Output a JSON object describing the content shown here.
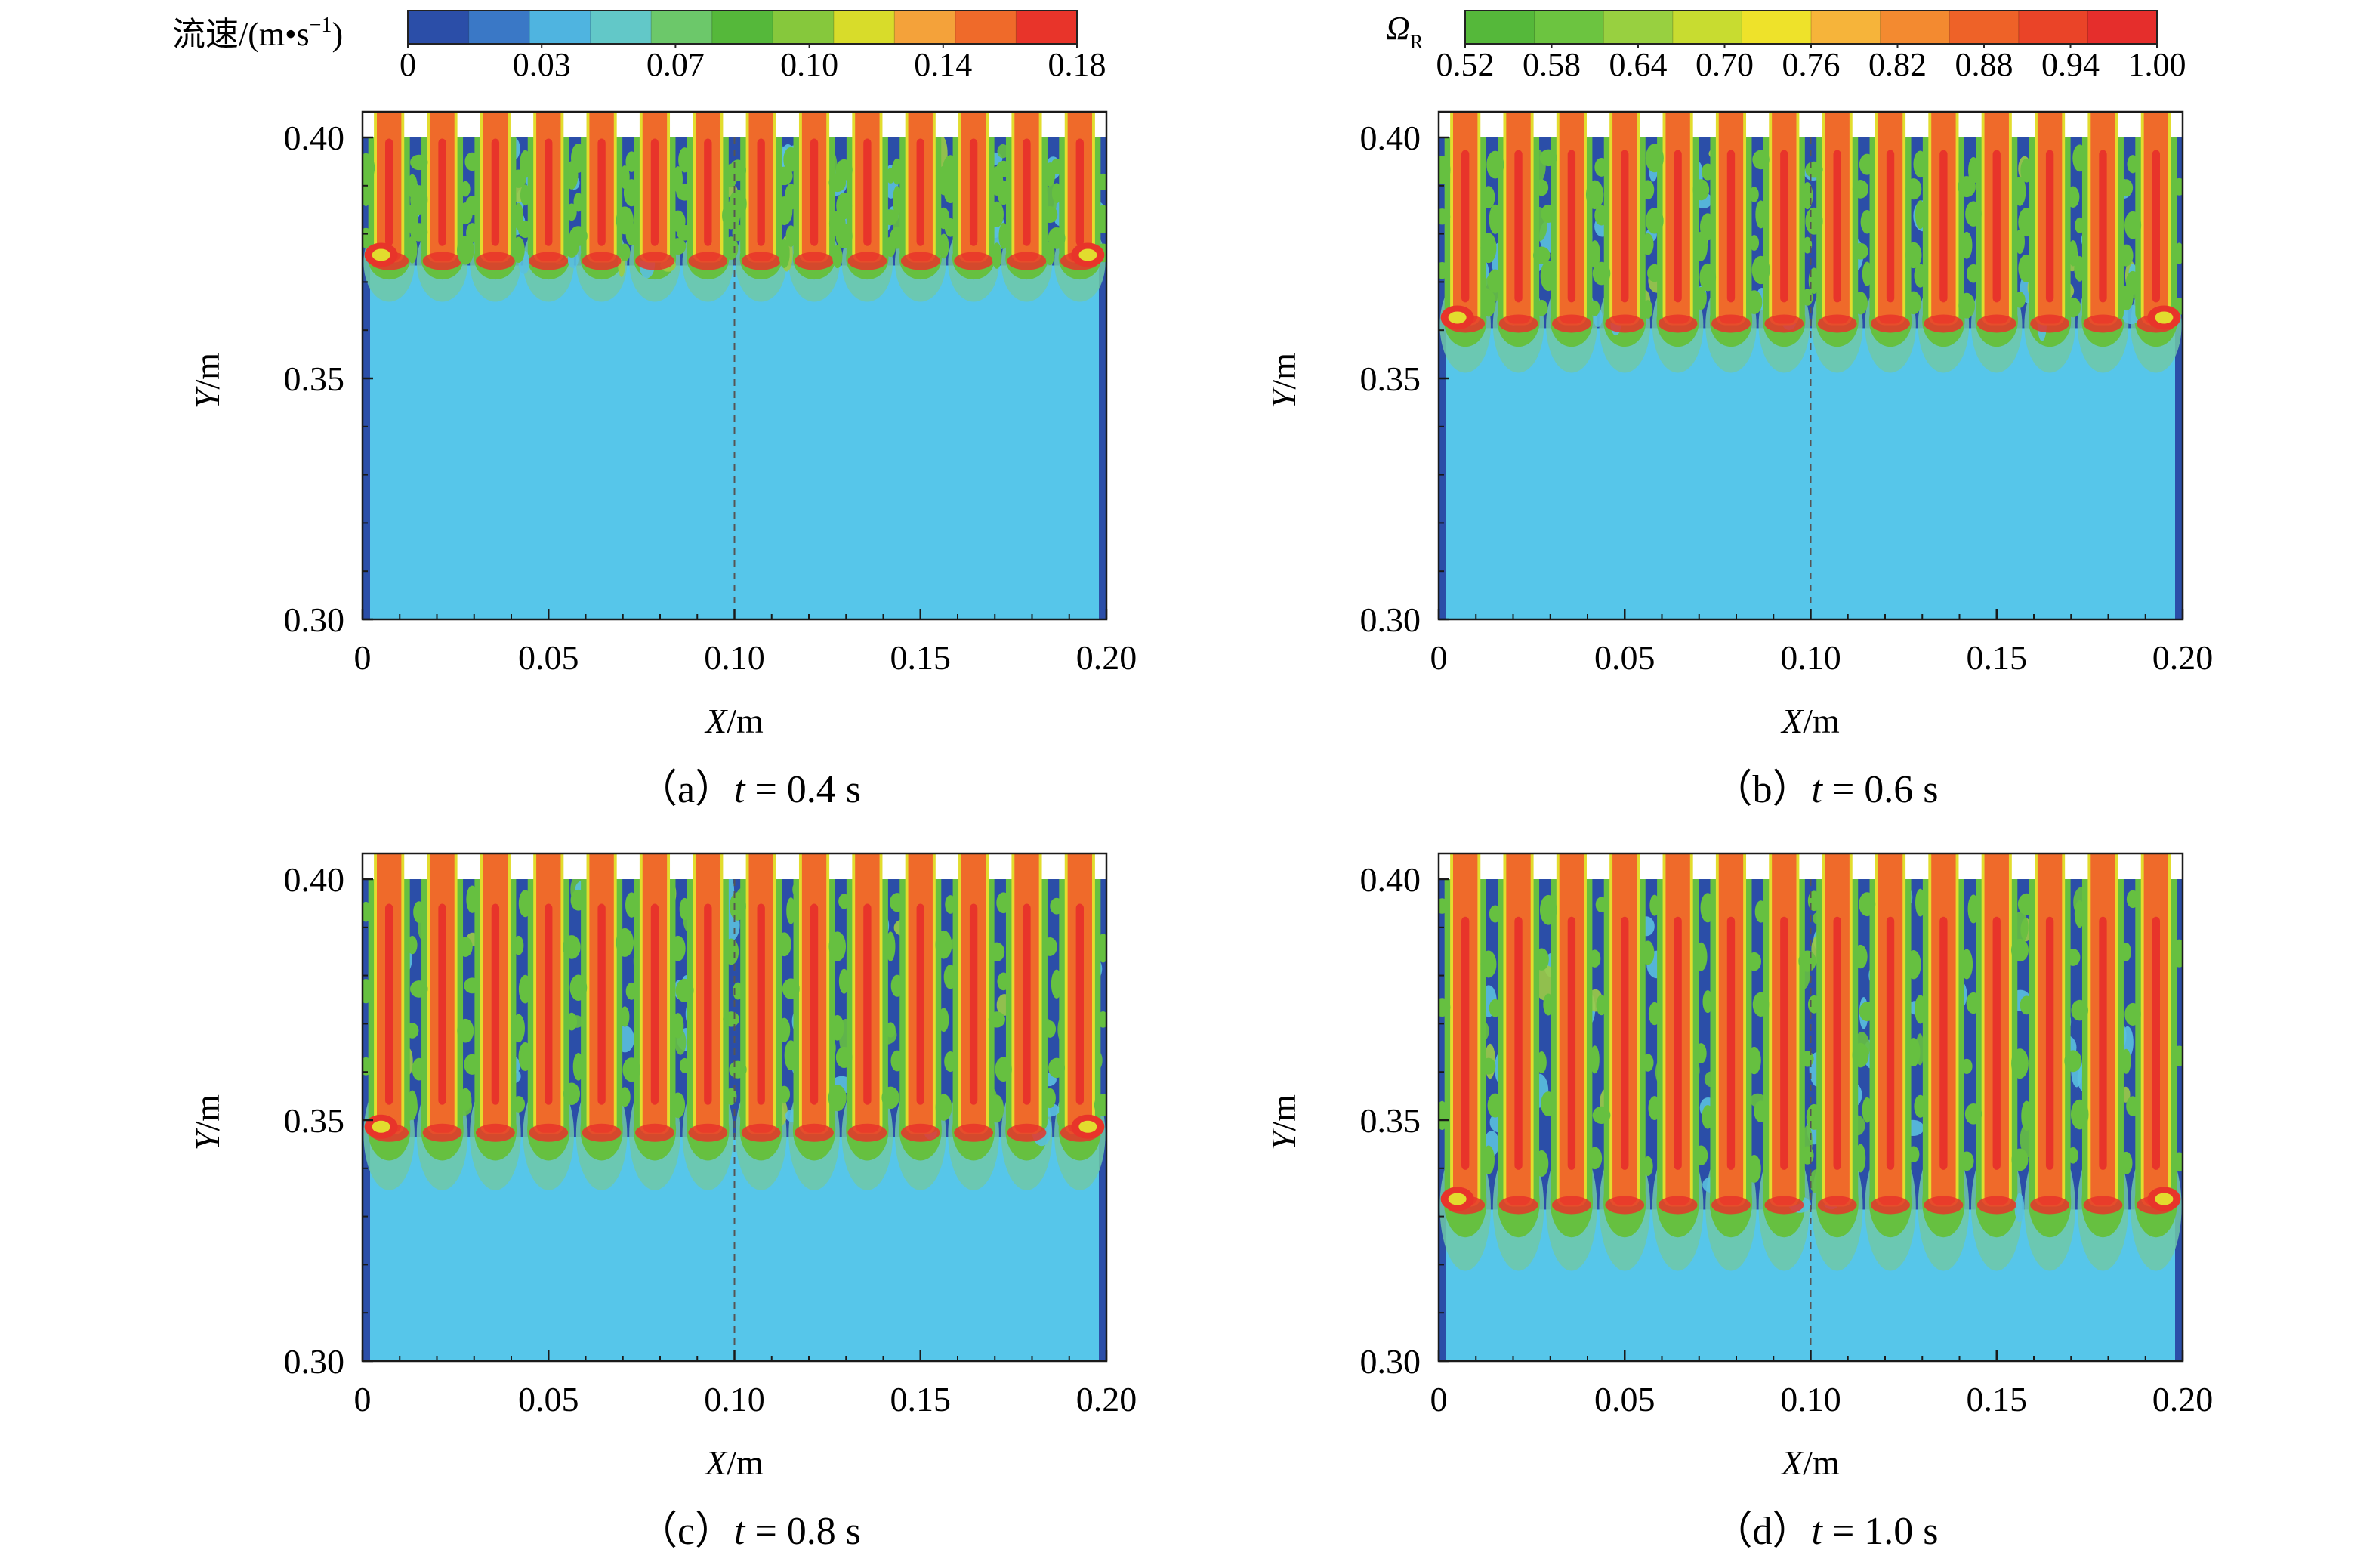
{
  "colorbars": [
    {
      "label_prefix": "流速/(m",
      "label_dot": "•",
      "label_s": "s",
      "label_exp": "−1",
      "label_close": ")",
      "ticks": [
        "0",
        "0.03",
        "0.07",
        "0.10",
        "0.14",
        "0.18"
      ],
      "colors": [
        "#2b4ea8",
        "#3a78c6",
        "#4fb4e0",
        "#62c8c8",
        "#6cc86a",
        "#55b83a",
        "#86c83c",
        "#d8dc2a",
        "#f4a23a",
        "#ef6a2a",
        "#e8342a"
      ]
    },
    {
      "label_symbol": "Ω",
      "label_sub": "R",
      "ticks": [
        "0.52",
        "0.58",
        "0.64",
        "0.70",
        "0.76",
        "0.82",
        "0.88",
        "0.94",
        "1.00"
      ],
      "colors": [
        "#55b83a",
        "#6cc440",
        "#98d040",
        "#c8dc30",
        "#eee22a",
        "#f6b43a",
        "#f38a30",
        "#ee6228",
        "#ea4428",
        "#e52e2c"
      ]
    }
  ],
  "chart_data": [
    {
      "type": "heatmap",
      "panel": "a",
      "caption_prefix": "（a）",
      "caption_var": "t",
      "caption_rest": " = 0.4 s",
      "t_s": 0.4,
      "xlabel_var": "X",
      "xlabel_unit": "/m",
      "ylabel_var": "Y",
      "ylabel_unit": "/m",
      "xlim": [
        0,
        0.2
      ],
      "ylim": [
        0.3,
        0.4
      ],
      "xticks": [
        "0",
        "0.05",
        "0.10",
        "0.15",
        "0.20"
      ],
      "yticks": [
        "0.30",
        "0.35",
        "0.40"
      ],
      "jet_count": 14,
      "front_y": 0.375
    },
    {
      "type": "heatmap",
      "panel": "b",
      "caption_prefix": "（b）",
      "caption_var": "t",
      "caption_rest": " = 0.6 s",
      "t_s": 0.6,
      "xlabel_var": "X",
      "xlabel_unit": "/m",
      "ylabel_var": "Y",
      "ylabel_unit": "/m",
      "xlim": [
        0,
        0.2
      ],
      "ylim": [
        0.3,
        0.4
      ],
      "xticks": [
        "0",
        "0.05",
        "0.10",
        "0.15",
        "0.20"
      ],
      "yticks": [
        "0.30",
        "0.35",
        "0.40"
      ],
      "jet_count": 14,
      "front_y": 0.362
    },
    {
      "type": "heatmap",
      "panel": "c",
      "caption_prefix": "（c）",
      "caption_var": "t",
      "caption_rest": " = 0.8 s",
      "t_s": 0.8,
      "xlabel_var": "X",
      "xlabel_unit": "/m",
      "ylabel_var": "Y",
      "ylabel_unit": "/m",
      "xlim": [
        0,
        0.2
      ],
      "ylim": [
        0.3,
        0.4
      ],
      "xticks": [
        "0",
        "0.05",
        "0.10",
        "0.15",
        "0.20"
      ],
      "yticks": [
        "0.30",
        "0.35",
        "0.40"
      ],
      "jet_count": 14,
      "front_y": 0.348
    },
    {
      "type": "heatmap",
      "panel": "d",
      "caption_prefix": "（d）",
      "caption_var": "t",
      "caption_rest": " = 1.0 s",
      "t_s": 1.0,
      "xlabel_var": "X",
      "xlabel_unit": "/m",
      "ylabel_var": "Y",
      "ylabel_unit": "/m",
      "xlim": [
        0,
        0.2
      ],
      "ylim": [
        0.3,
        0.4
      ],
      "xticks": [
        "0",
        "0.05",
        "0.10",
        "0.15",
        "0.20"
      ],
      "yticks": [
        "0.30",
        "0.35",
        "0.40"
      ],
      "jet_count": 14,
      "front_y": 0.333
    }
  ],
  "field_colors": {
    "background": "#56c6ea",
    "wall": "#2b4ea8",
    "jet_core": "#ef6a2a",
    "jet_hot": "#e8342a",
    "shear": "#66c040",
    "shear_light": "#9ccc44",
    "lobe": "#6fc8a8",
    "yellow": "#e2dc2e",
    "centerline": "#555555"
  }
}
